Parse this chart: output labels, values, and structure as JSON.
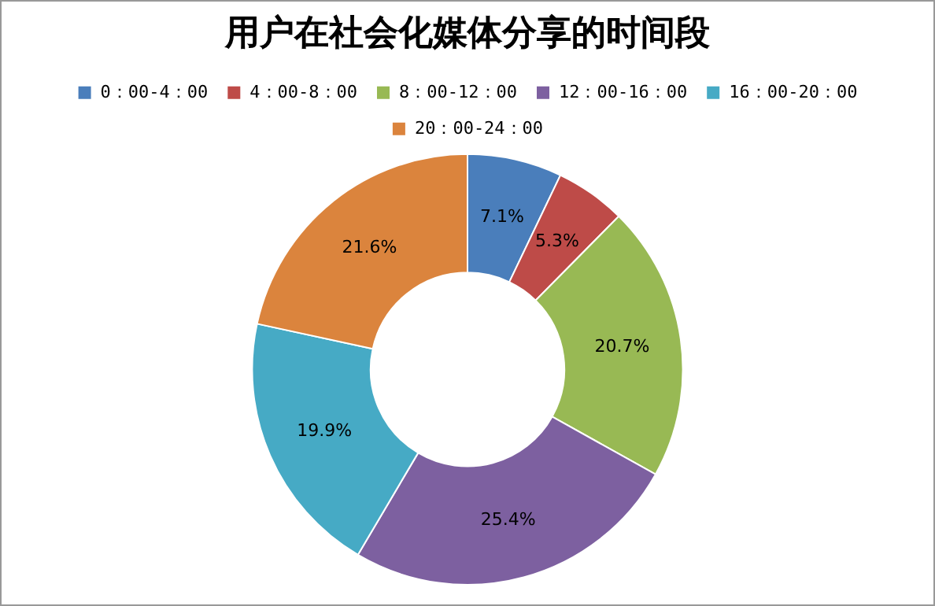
{
  "chart_data": {
    "type": "donut",
    "title": "用户在社会化媒体分享的时间段",
    "categories": [
      "0：00-4：00",
      "4：00-8：00",
      "8：00-12：00",
      "12：00-16：00",
      "16：00-20：00",
      "20：00-24：00"
    ],
    "values": [
      7.1,
      5.3,
      20.7,
      25.4,
      19.9,
      21.6
    ],
    "value_labels": [
      "7.1%",
      "5.3%",
      "20.7%",
      "25.4%",
      "19.9%",
      "21.6%"
    ],
    "colors": [
      "#4a7ebb",
      "#be4b48",
      "#98b954",
      "#7d60a0",
      "#46aac5",
      "#db843d"
    ],
    "legend": "top"
  }
}
